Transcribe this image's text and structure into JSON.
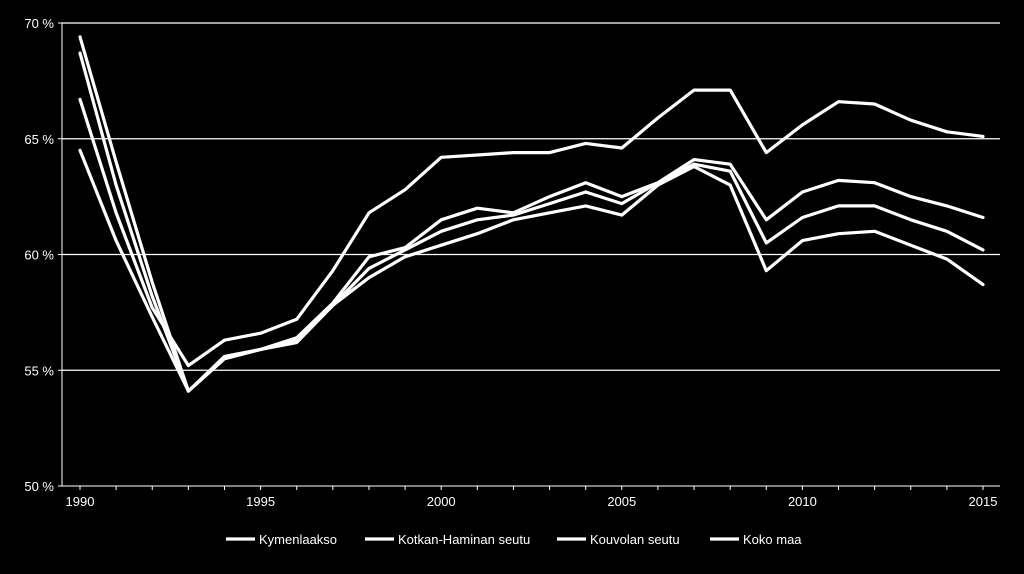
{
  "colors": {
    "background": "#000000",
    "lines": "#ffffff",
    "gridlines": "#ffffff",
    "text": "#ffffff"
  },
  "chart_data": {
    "type": "line",
    "title": "",
    "xlabel": "",
    "ylabel": "",
    "xlim": [
      1990,
      2015
    ],
    "ylim": [
      50,
      70
    ],
    "y_ticks": [
      50,
      55,
      60,
      65,
      70
    ],
    "y_tick_labels": [
      "50 %",
      "55 %",
      "60 %",
      "65 %",
      "70 %"
    ],
    "x_ticks": [
      1990,
      1995,
      2000,
      2005,
      2010,
      2015
    ],
    "x_tick_labels": [
      "1990",
      "1995",
      "2000",
      "2005",
      "2010",
      "2015"
    ],
    "grid": "horizontal",
    "legend_position": "bottom",
    "x": [
      1990,
      1991,
      1992,
      1993,
      1994,
      1995,
      1996,
      1997,
      1998,
      1999,
      2000,
      2001,
      2002,
      2003,
      2004,
      2005,
      2006,
      2007,
      2008,
      2009,
      2010,
      2011,
      2012,
      2013,
      2014,
      2015
    ],
    "series": [
      {
        "name": "Kymenlaakso",
        "values": [
          68.7,
          63.0,
          58.2,
          54.1,
          55.5,
          55.9,
          56.3,
          57.8,
          59.4,
          60.2,
          61.0,
          61.5,
          61.7,
          62.2,
          62.7,
          62.2,
          63.1,
          63.9,
          63.6,
          60.5,
          61.6,
          62.1,
          62.1,
          61.5,
          61.0,
          60.2
        ]
      },
      {
        "name": "Kotkan-Haminan seutu",
        "values": [
          64.5,
          60.6,
          57.3,
          54.1,
          55.6,
          55.9,
          56.2,
          57.8,
          59.0,
          59.9,
          60.4,
          60.9,
          61.5,
          61.8,
          62.1,
          61.7,
          63.0,
          63.8,
          63.0,
          59.3,
          60.6,
          60.9,
          61.0,
          60.4,
          59.8,
          58.7
        ]
      },
      {
        "name": "Kouvolan seutu",
        "values": [
          69.4,
          64.0,
          58.8,
          54.1,
          55.5,
          55.9,
          56.4,
          57.9,
          59.9,
          60.3,
          61.5,
          62.0,
          61.8,
          62.5,
          63.1,
          62.5,
          63.1,
          64.1,
          63.9,
          61.5,
          62.7,
          63.2,
          63.1,
          62.5,
          62.1,
          61.6
        ]
      },
      {
        "name": "Koko maa",
        "values": [
          66.7,
          61.8,
          57.7,
          55.2,
          56.3,
          56.6,
          57.2,
          59.3,
          61.8,
          62.8,
          64.2,
          64.3,
          64.4,
          64.4,
          64.8,
          64.6,
          65.9,
          67.1,
          67.1,
          64.4,
          65.6,
          66.6,
          66.5,
          65.8,
          65.3,
          65.1
        ]
      }
    ]
  }
}
